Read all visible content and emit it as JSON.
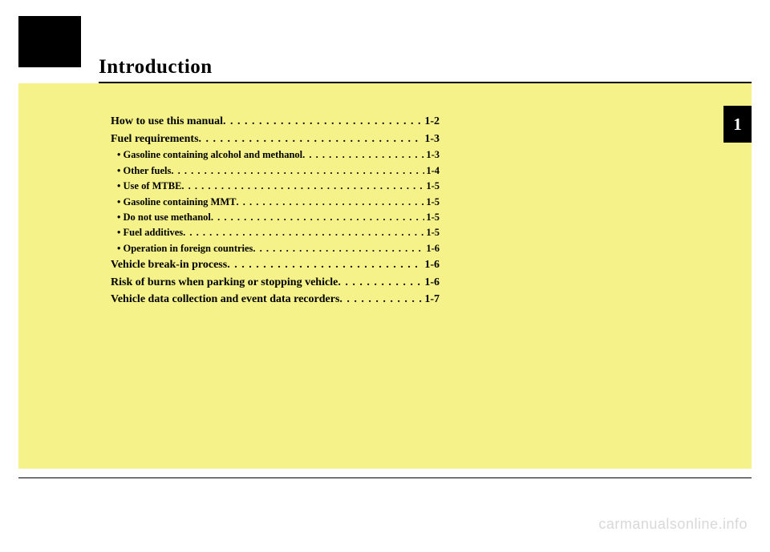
{
  "title": "Introduction",
  "chapter_tab": "1",
  "toc": [
    {
      "type": "main",
      "label": "How to use this manual",
      "page": "1-2"
    },
    {
      "type": "main",
      "label": "Fuel requirements",
      "page": "1-3"
    },
    {
      "type": "sub",
      "label": "• Gasoline containing alcohol and methanol",
      "page": "1-3"
    },
    {
      "type": "sub",
      "label": "• Other fuels",
      "page": "1-4"
    },
    {
      "type": "sub",
      "label": "• Use of MTBE",
      "page": "1-5"
    },
    {
      "type": "sub",
      "label": "• Gasoline containing MMT",
      "page": "1-5"
    },
    {
      "type": "sub",
      "label": "• Do not use methanol",
      "page": "1-5"
    },
    {
      "type": "sub",
      "label": "• Fuel additives",
      "page": "1-5"
    },
    {
      "type": "sub",
      "label": "• Operation in foreign countries",
      "page": "1-6"
    },
    {
      "type": "main",
      "label": "Vehicle break-in process",
      "page": "1-6"
    },
    {
      "type": "main",
      "label": "Risk of burns when parking or stopping vehicle",
      "page": "1-6"
    },
    {
      "type": "main",
      "label": "Vehicle data collection and event data recorders",
      "page": "1-7"
    }
  ],
  "dots": " . . . . . . . . . . . . . . . . . . . . . . . . . . . . . . . . . . . . . . . . . . . . . . . . . . . . . . . . . . . .",
  "watermark": "carmanualsonline.info",
  "colors": {
    "panel_bg": "#f5f289",
    "black": "#000000",
    "white": "#ffffff",
    "watermark": "#d8d8d8"
  }
}
